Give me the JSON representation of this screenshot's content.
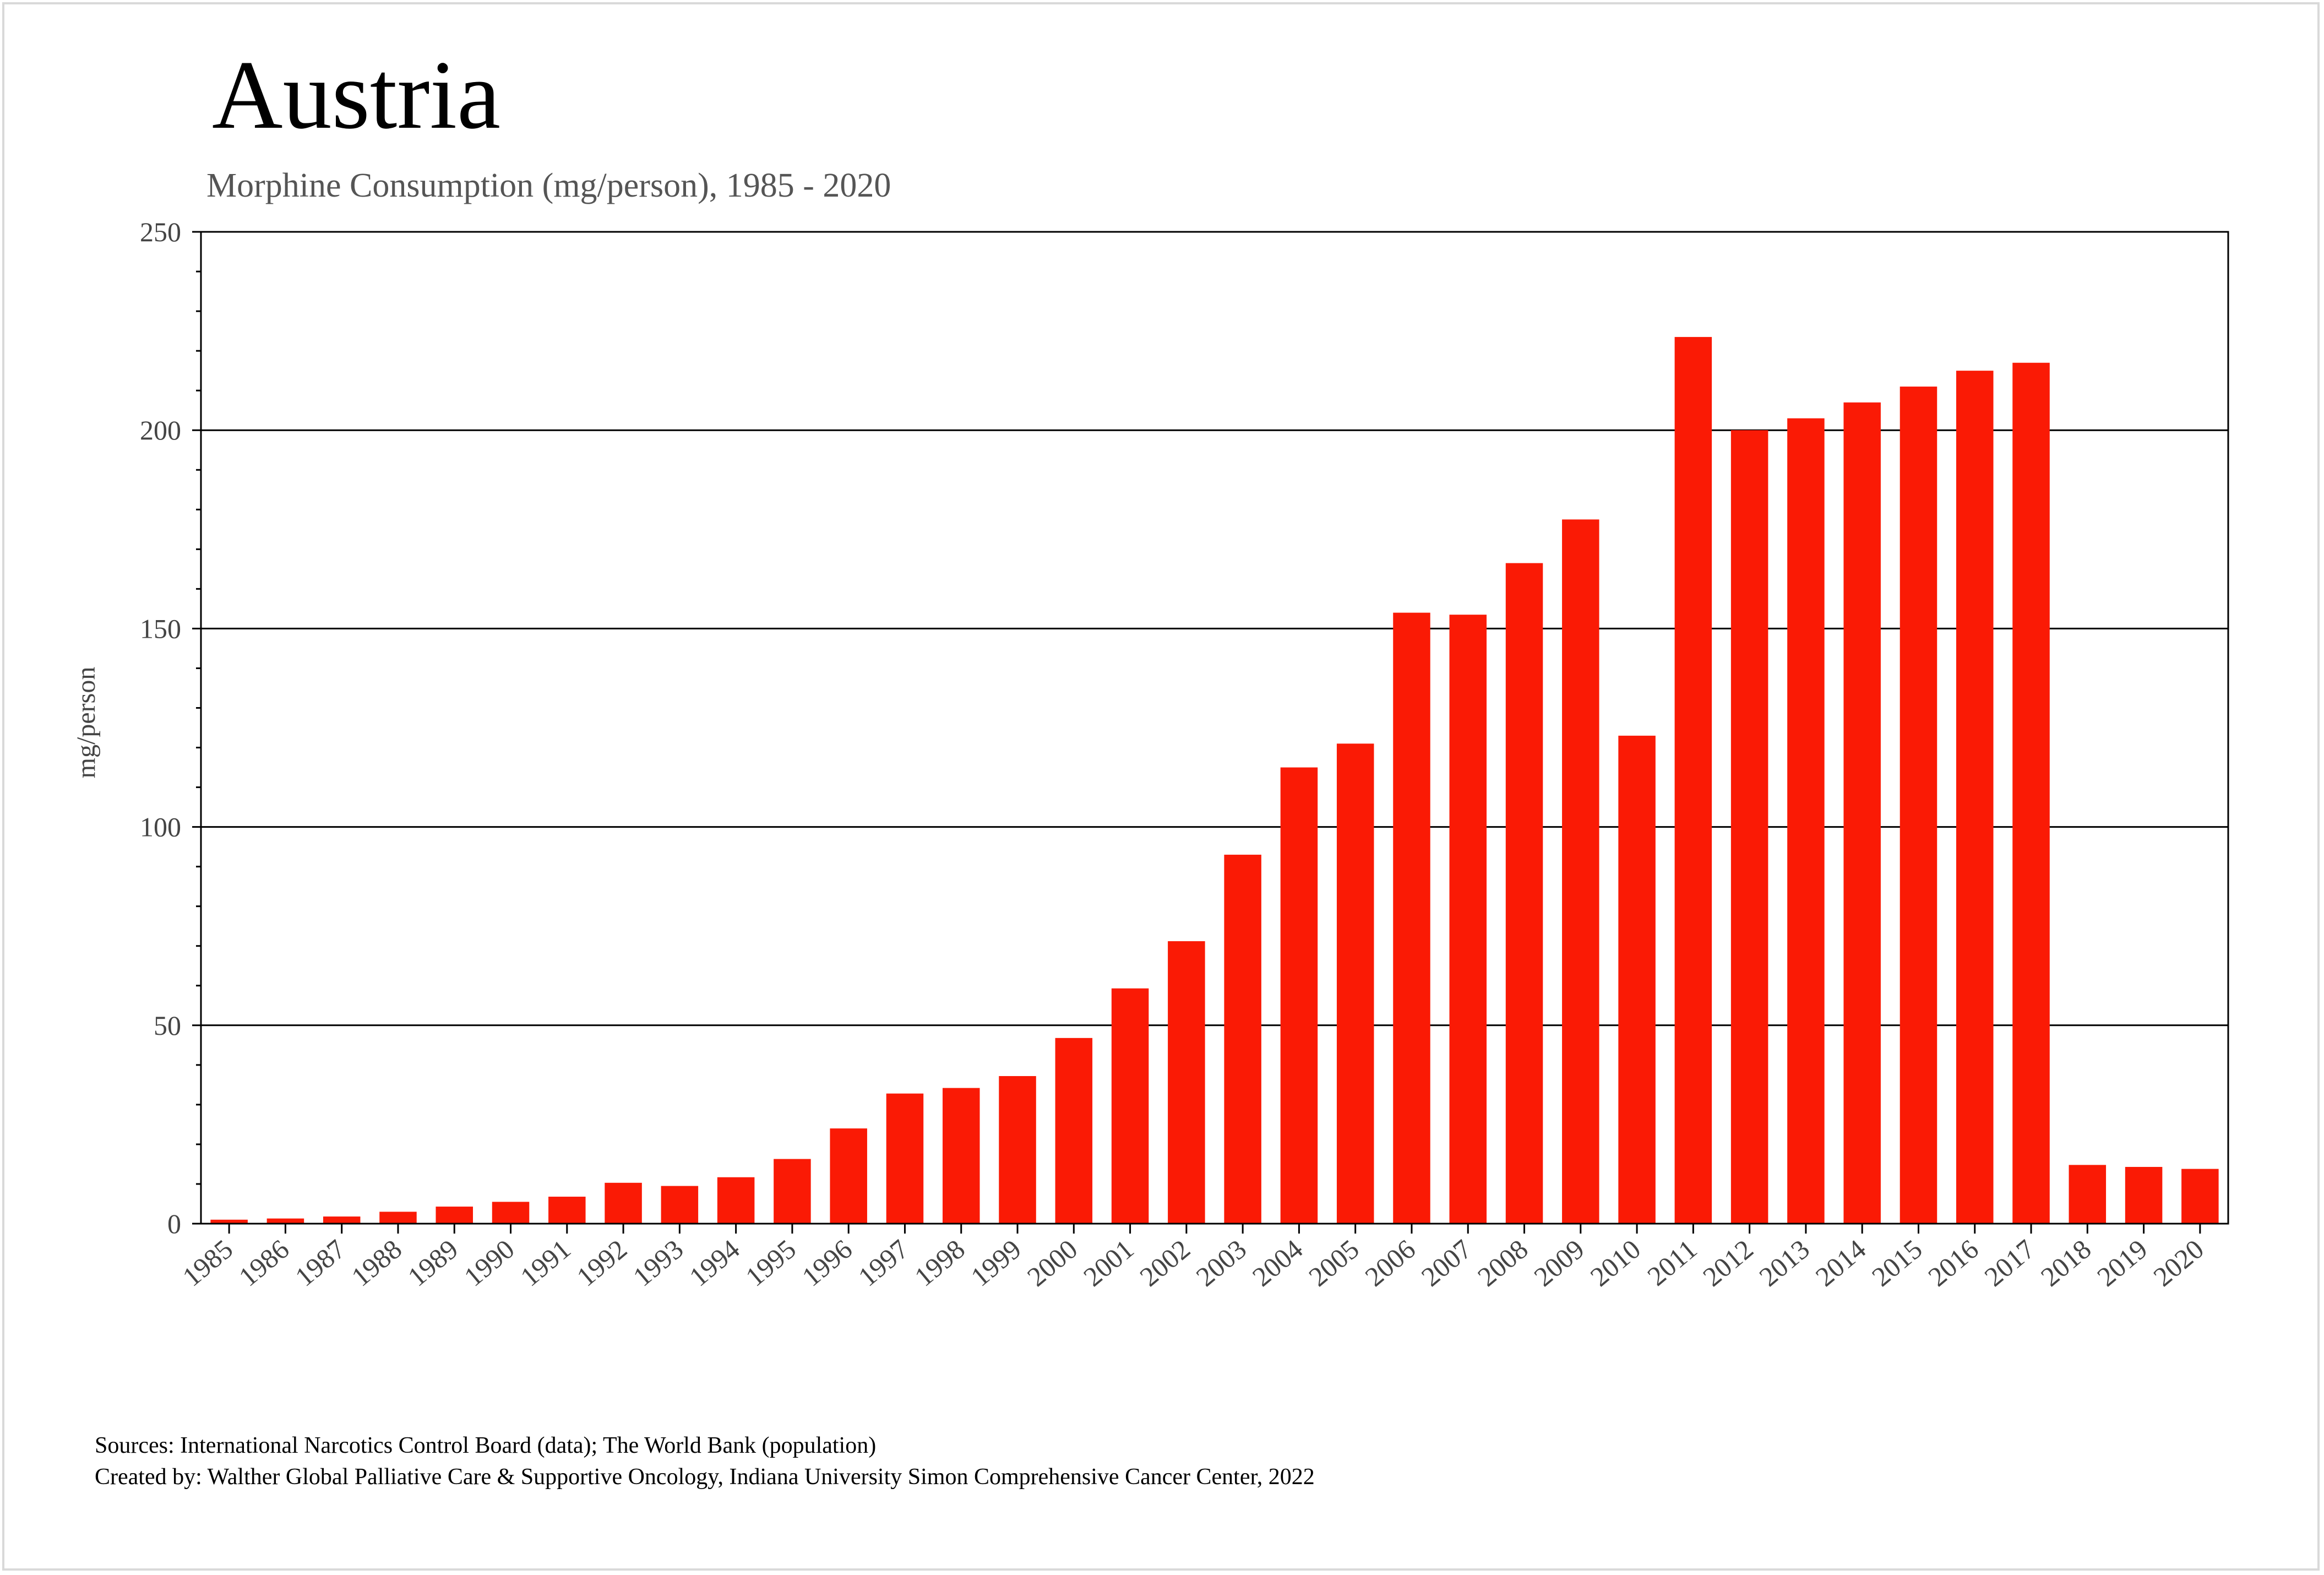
{
  "chart_data": {
    "type": "bar",
    "title": "Austria",
    "subtitle": "Morphine Consumption (mg/person), 1985 - 2020",
    "xlabel": "",
    "ylabel": "mg/person",
    "ylim": [
      0,
      250
    ],
    "yticks": [
      0,
      50,
      100,
      150,
      200,
      250
    ],
    "grid": true,
    "bar_color": "#fa1a05",
    "categories": [
      "1985",
      "1986",
      "1987",
      "1988",
      "1989",
      "1990",
      "1991",
      "1992",
      "1993",
      "1994",
      "1995",
      "1996",
      "1997",
      "1998",
      "1999",
      "2000",
      "2001",
      "2002",
      "2003",
      "2004",
      "2005",
      "2006",
      "2007",
      "2008",
      "2009",
      "2010",
      "2011",
      "2012",
      "2013",
      "2014",
      "2015",
      "2016",
      "2017",
      "2018",
      "2019",
      "2020"
    ],
    "values": [
      1,
      1.3,
      1.8,
      3,
      4.3,
      5.5,
      6.8,
      10.3,
      9.5,
      11.7,
      16.3,
      24,
      32.8,
      34.2,
      37.2,
      46.8,
      59.3,
      71.2,
      93,
      115,
      121,
      154,
      153.5,
      166.5,
      177.5,
      123,
      223.5,
      200,
      203,
      207,
      211,
      215,
      217,
      14.8,
      14.3,
      13.8
    ]
  },
  "footer": {
    "sources": "Sources: International Narcotics Control Board (data); The World Bank (population)",
    "created_by": "Created by: Walther  Global Palliative Care & Supportive Oncology, Indiana University Simon Comprehensive Cancer Center, 2022"
  }
}
